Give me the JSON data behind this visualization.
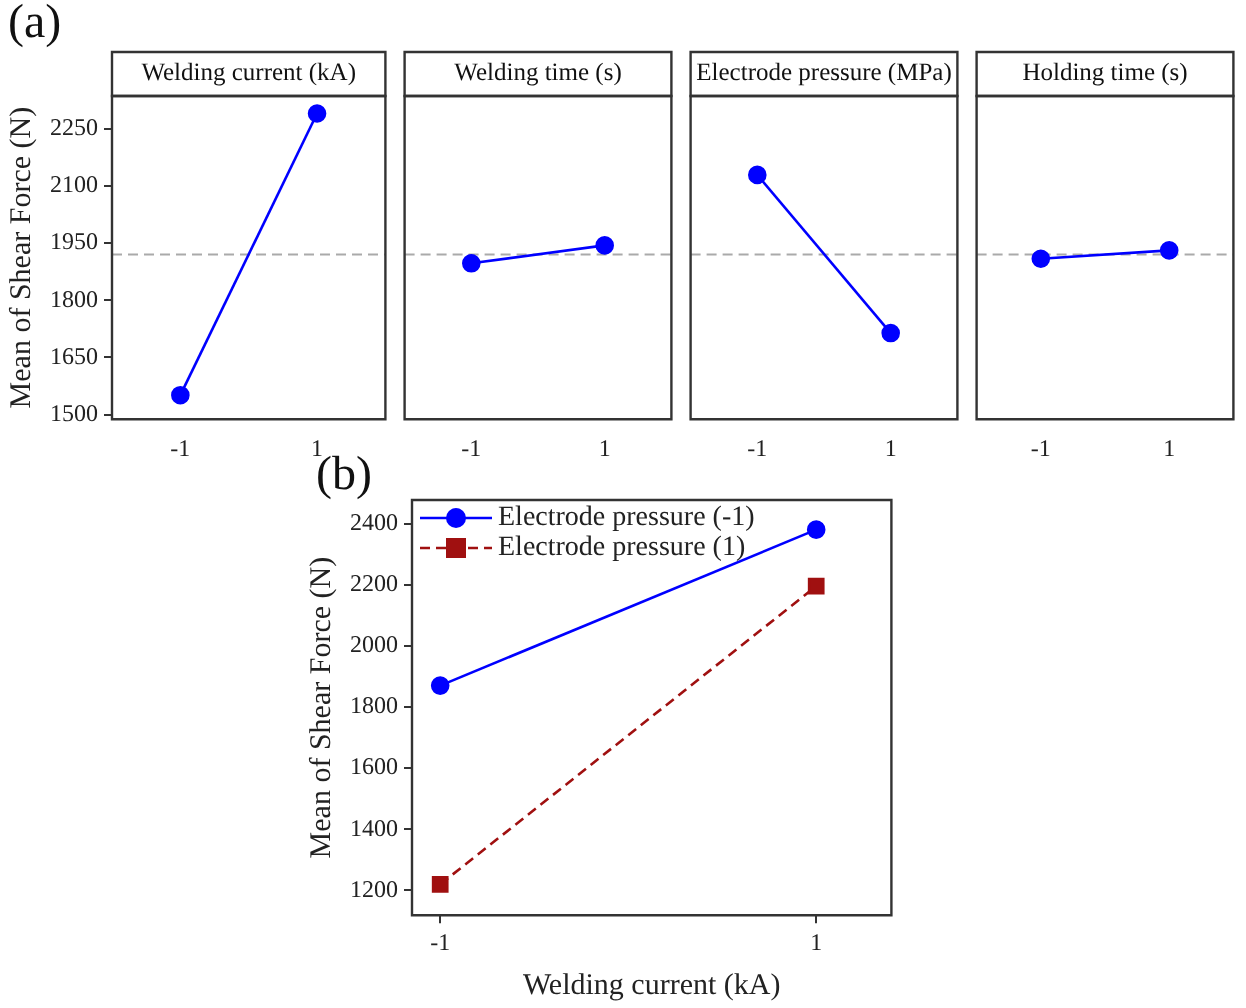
{
  "chart_data": [
    {
      "type": "line",
      "title": "Welding current (kA)",
      "ylabel": "Mean of Shear Force (N)",
      "annotations": [
        "(a)"
      ],
      "categories": [
        "-1",
        "1"
      ],
      "series": [
        {
          "color": "#0000ff",
          "values": [
            1551,
            2290
          ]
        }
      ],
      "ylim": [
        1488,
        2336
      ],
      "yticks": [
        1500,
        1650,
        1800,
        1950,
        2100,
        2250
      ],
      "ref_lines": [
        {
          "axis": "y",
          "value": 1920,
          "color": "#aaaaaa",
          "line_style": "dashed"
        }
      ],
      "marker": "circle",
      "line_style": "solid",
      "grid": false,
      "legend": false
    },
    {
      "type": "line",
      "title": "Welding time (s)",
      "categories": [
        "-1",
        "1"
      ],
      "series": [
        {
          "color": "#0000ff",
          "values": [
            1897,
            1944
          ]
        }
      ],
      "ylim": [
        1488,
        2336
      ],
      "yticks": [
        1500,
        1650,
        1800,
        1950,
        2100,
        2250
      ],
      "tick_labels": "x",
      "ref_lines": [
        {
          "axis": "y",
          "value": 1920,
          "color": "#aaaaaa",
          "line_style": "dashed"
        }
      ],
      "marker": "circle",
      "line_style": "solid",
      "grid": false,
      "legend": false
    },
    {
      "type": "line",
      "title": "Electrode pressure (MPa)",
      "categories": [
        "-1",
        "1"
      ],
      "series": [
        {
          "color": "#0000ff",
          "values": [
            2129,
            1714
          ]
        }
      ],
      "ylim": [
        1488,
        2336
      ],
      "yticks": [
        1500,
        1650,
        1800,
        1950,
        2100,
        2250
      ],
      "tick_labels": "x",
      "ref_lines": [
        {
          "axis": "y",
          "value": 1920,
          "color": "#aaaaaa",
          "line_style": "dashed"
        }
      ],
      "marker": "circle",
      "line_style": "solid",
      "grid": false,
      "legend": false
    },
    {
      "type": "line",
      "title": "Holding time (s)",
      "categories": [
        "-1",
        "1"
      ],
      "series": [
        {
          "color": "#0000ff",
          "values": [
            1909,
            1931
          ]
        }
      ],
      "ylim": [
        1488,
        2336
      ],
      "yticks": [
        1500,
        1650,
        1800,
        1950,
        2100,
        2250
      ],
      "tick_labels": "x",
      "ref_lines": [
        {
          "axis": "y",
          "value": 1920,
          "color": "#aaaaaa",
          "line_style": "dashed"
        }
      ],
      "marker": "circle",
      "line_style": "solid",
      "grid": false,
      "legend": false
    },
    {
      "type": "line",
      "xlabel": "Welding current (kA)",
      "ylabel": "Mean of Shear Force (N)",
      "annotations": [
        "(b)"
      ],
      "x": [
        -1,
        1
      ],
      "xlim": [
        -1.15,
        1.4
      ],
      "xticks": [
        -1,
        1
      ],
      "ylim": [
        1119,
        2477
      ],
      "yticks": [
        1200,
        1400,
        1600,
        1800,
        2000,
        2200,
        2400
      ],
      "series": [
        {
          "name": "Electrode pressure (-1)",
          "color": "#0000ff",
          "values": [
            1870,
            2380
          ],
          "marker": "circle",
          "line_style": "solid"
        },
        {
          "name": "Electrode pressure (1)",
          "color": "#a01010",
          "values": [
            1220,
            2195
          ],
          "marker": "square",
          "line_style": "dashed"
        }
      ],
      "grid": false,
      "legend": "top left"
    }
  ]
}
